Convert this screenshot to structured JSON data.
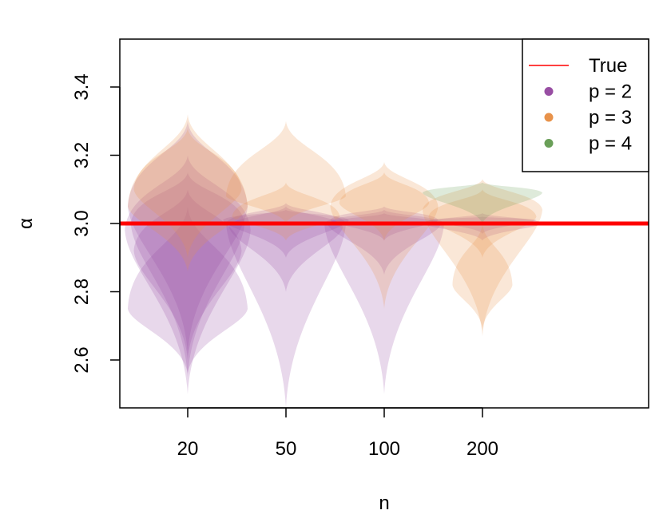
{
  "chart_data": {
    "type": "violin",
    "xlabel": "n",
    "ylabel": "α",
    "categories": [
      "20",
      "50",
      "100",
      "200"
    ],
    "ylim": [
      2.46,
      3.54
    ],
    "yticks": [
      2.6,
      2.8,
      3.0,
      3.2,
      3.4
    ],
    "ytick_labels": [
      "2.6",
      "2.8",
      "3.0",
      "3.2",
      "3.4"
    ],
    "true_value": 3.0,
    "legend": {
      "position": "top-right",
      "entries": [
        {
          "label": "True",
          "kind": "line",
          "color": "#ff0000"
        },
        {
          "label": "p = 2",
          "kind": "point",
          "color": "#984ea3"
        },
        {
          "label": "p = 3",
          "kind": "point",
          "color": "#e8924a"
        },
        {
          "label": "p = 4",
          "kind": "point",
          "color": "#6a9f58"
        }
      ]
    },
    "series": [
      {
        "name": "p = 2",
        "color": "#984ea3",
        "distributions": [
          {
            "category": "20",
            "violins": [
              {
                "center": 3.0,
                "min": 2.55,
                "max": 3.15,
                "width": 0.38
              },
              {
                "center": 2.98,
                "min": 2.5,
                "max": 3.2,
                "width": 0.42
              },
              {
                "center": 2.75,
                "min": 2.56,
                "max": 3.05,
                "width": 0.4
              },
              {
                "center": 2.92,
                "min": 2.6,
                "max": 3.1,
                "width": 0.36
              },
              {
                "center": 3.05,
                "min": 2.62,
                "max": 3.3,
                "width": 0.4
              }
            ]
          },
          {
            "category": "50",
            "violins": [
              {
                "center": 3.0,
                "min": 2.46,
                "max": 3.06,
                "width": 0.4
              },
              {
                "center": 2.99,
                "min": 2.8,
                "max": 3.05,
                "width": 0.38
              },
              {
                "center": 3.01,
                "min": 2.9,
                "max": 3.04,
                "width": 0.42
              }
            ]
          },
          {
            "category": "100",
            "violins": [
              {
                "center": 3.0,
                "min": 2.5,
                "max": 3.04,
                "width": 0.4
              },
              {
                "center": 3.0,
                "min": 2.85,
                "max": 3.03,
                "width": 0.38
              },
              {
                "center": 3.01,
                "min": 2.95,
                "max": 3.05,
                "width": 0.36
              }
            ]
          },
          {
            "category": "200",
            "violins": [
              {
                "center": 3.0,
                "min": 2.95,
                "max": 3.03,
                "width": 0.4
              },
              {
                "center": 3.01,
                "min": 2.97,
                "max": 3.02,
                "width": 0.36
              }
            ]
          }
        ]
      },
      {
        "name": "p = 3",
        "color": "#e8924a",
        "distributions": [
          {
            "category": "20",
            "violins": [
              {
                "center": 3.05,
                "min": 2.86,
                "max": 3.32,
                "width": 0.4
              },
              {
                "center": 3.1,
                "min": 2.9,
                "max": 3.28,
                "width": 0.36
              }
            ]
          },
          {
            "category": "50",
            "violins": [
              {
                "center": 3.08,
                "min": 3.0,
                "max": 3.3,
                "width": 0.4
              },
              {
                "center": 3.02,
                "min": 2.95,
                "max": 3.12,
                "width": 0.36
              }
            ]
          },
          {
            "category": "100",
            "violins": [
              {
                "center": 3.05,
                "min": 2.75,
                "max": 3.18,
                "width": 0.36
              },
              {
                "center": 3.06,
                "min": 2.95,
                "max": 3.15,
                "width": 0.3
              }
            ]
          },
          {
            "category": "200",
            "violins": [
              {
                "center": 3.04,
                "min": 2.67,
                "max": 3.13,
                "width": 0.4
              },
              {
                "center": 2.82,
                "min": 2.69,
                "max": 3.0,
                "width": 0.2
              },
              {
                "center": 3.02,
                "min": 2.9,
                "max": 3.1,
                "width": 0.36
              }
            ]
          }
        ]
      },
      {
        "name": "p = 4",
        "color": "#6a9f58",
        "distributions": [
          {
            "category": "200",
            "violins": [
              {
                "center": 3.09,
                "min": 3.0,
                "max": 3.12,
                "width": 0.4
              }
            ]
          }
        ]
      }
    ]
  }
}
